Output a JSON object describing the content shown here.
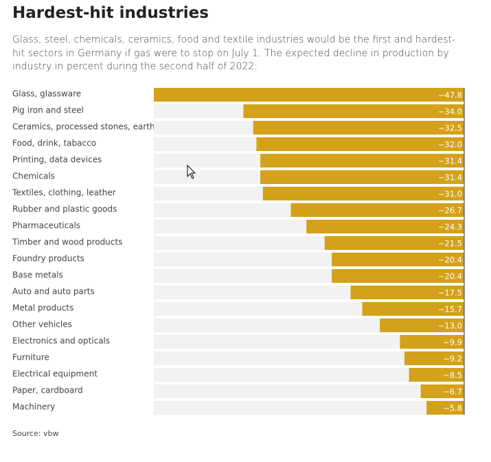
{
  "chart_data": {
    "type": "bar",
    "orientation": "horizontal",
    "title": "Hardest-hit industries",
    "subtitle": "Glass, steel, chemicals, ceramics, food and textile industries would be the first and hardest-hit sectors in Germany if gas were to stop on July 1. The expected decline in production by industry in percent during the second half of 2022:",
    "categories": [
      "Glass, glassware",
      "Pig iron and steel",
      "Ceramics, processed stones, earths",
      "Food, drink, tabacco",
      "Printing, data devices",
      "Chemicals",
      "Textiles, clothing, leather",
      "Rubber and plastic goods",
      "Pharmaceuticals",
      "Timber and wood products",
      "Foundry products",
      "Base metals",
      "Auto and auto parts",
      "Metal products",
      "Other vehicles",
      "Electronics and opticals",
      "Furniture",
      "Electrical equipment",
      "Paper, cardboard",
      "Machinery"
    ],
    "values": [
      -47.8,
      -34.0,
      -32.5,
      -32.0,
      -31.4,
      -31.4,
      -31.0,
      -26.7,
      -24.3,
      -21.5,
      -20.4,
      -20.4,
      -17.5,
      -15.7,
      -13.0,
      -9.9,
      -9.2,
      -8.5,
      -6.7,
      -5.8
    ],
    "value_labels": [
      "−47.8",
      "−34.0",
      "−32.5",
      "−32.0",
      "−31.4",
      "−31.4",
      "−31.0",
      "−26.7",
      "−24.3",
      "−21.5",
      "−20.4",
      "−20.4",
      "−17.5",
      "−15.7",
      "−13.0",
      "−9.9",
      "−9.2",
      "−8.5",
      "−6.7",
      "−5.8"
    ],
    "color": "#d4a11b",
    "xlim": [
      -47.8,
      0
    ],
    "source": "Source: vbw"
  }
}
